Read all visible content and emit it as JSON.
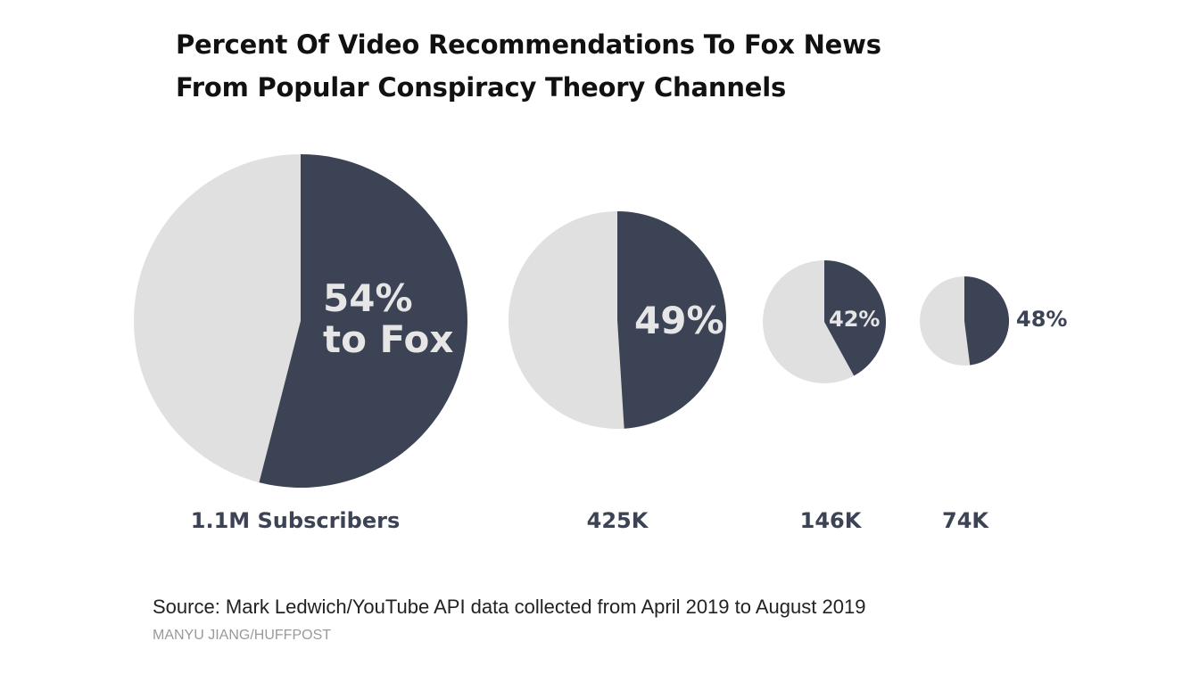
{
  "title_lines": [
    "Percent Of Video Recommendations To Fox News",
    "From Popular Conspiracy Theory Channels"
  ],
  "colors": {
    "fox": "#3c4354",
    "other": "#e0e0e0",
    "label_inside": "#e6e6e6",
    "label_outside": "#3c4354"
  },
  "chart_data": {
    "type": "pie",
    "title": "Percent Of Video Recommendations To Fox News From Popular Conspiracy Theory Channels",
    "series_label": "to Fox",
    "pies": [
      {
        "subscribers": "1.1M Subscribers",
        "subscriber_count": 1100000,
        "fox_percent": 54,
        "label": "54%",
        "label_suffix": "to Fox"
      },
      {
        "subscribers": "425K",
        "subscriber_count": 425000,
        "fox_percent": 49,
        "label": "49%"
      },
      {
        "subscribers": "146K",
        "subscriber_count": 146000,
        "fox_percent": 42,
        "label": "42%"
      },
      {
        "subscribers": "74K",
        "subscriber_count": 74000,
        "fox_percent": 48,
        "label": "48%"
      }
    ]
  },
  "source": "Source: Mark Ledwich/YouTube API data collected from April 2019 to August 2019",
  "credit": "MANYU JIANG/HUFFPOST"
}
